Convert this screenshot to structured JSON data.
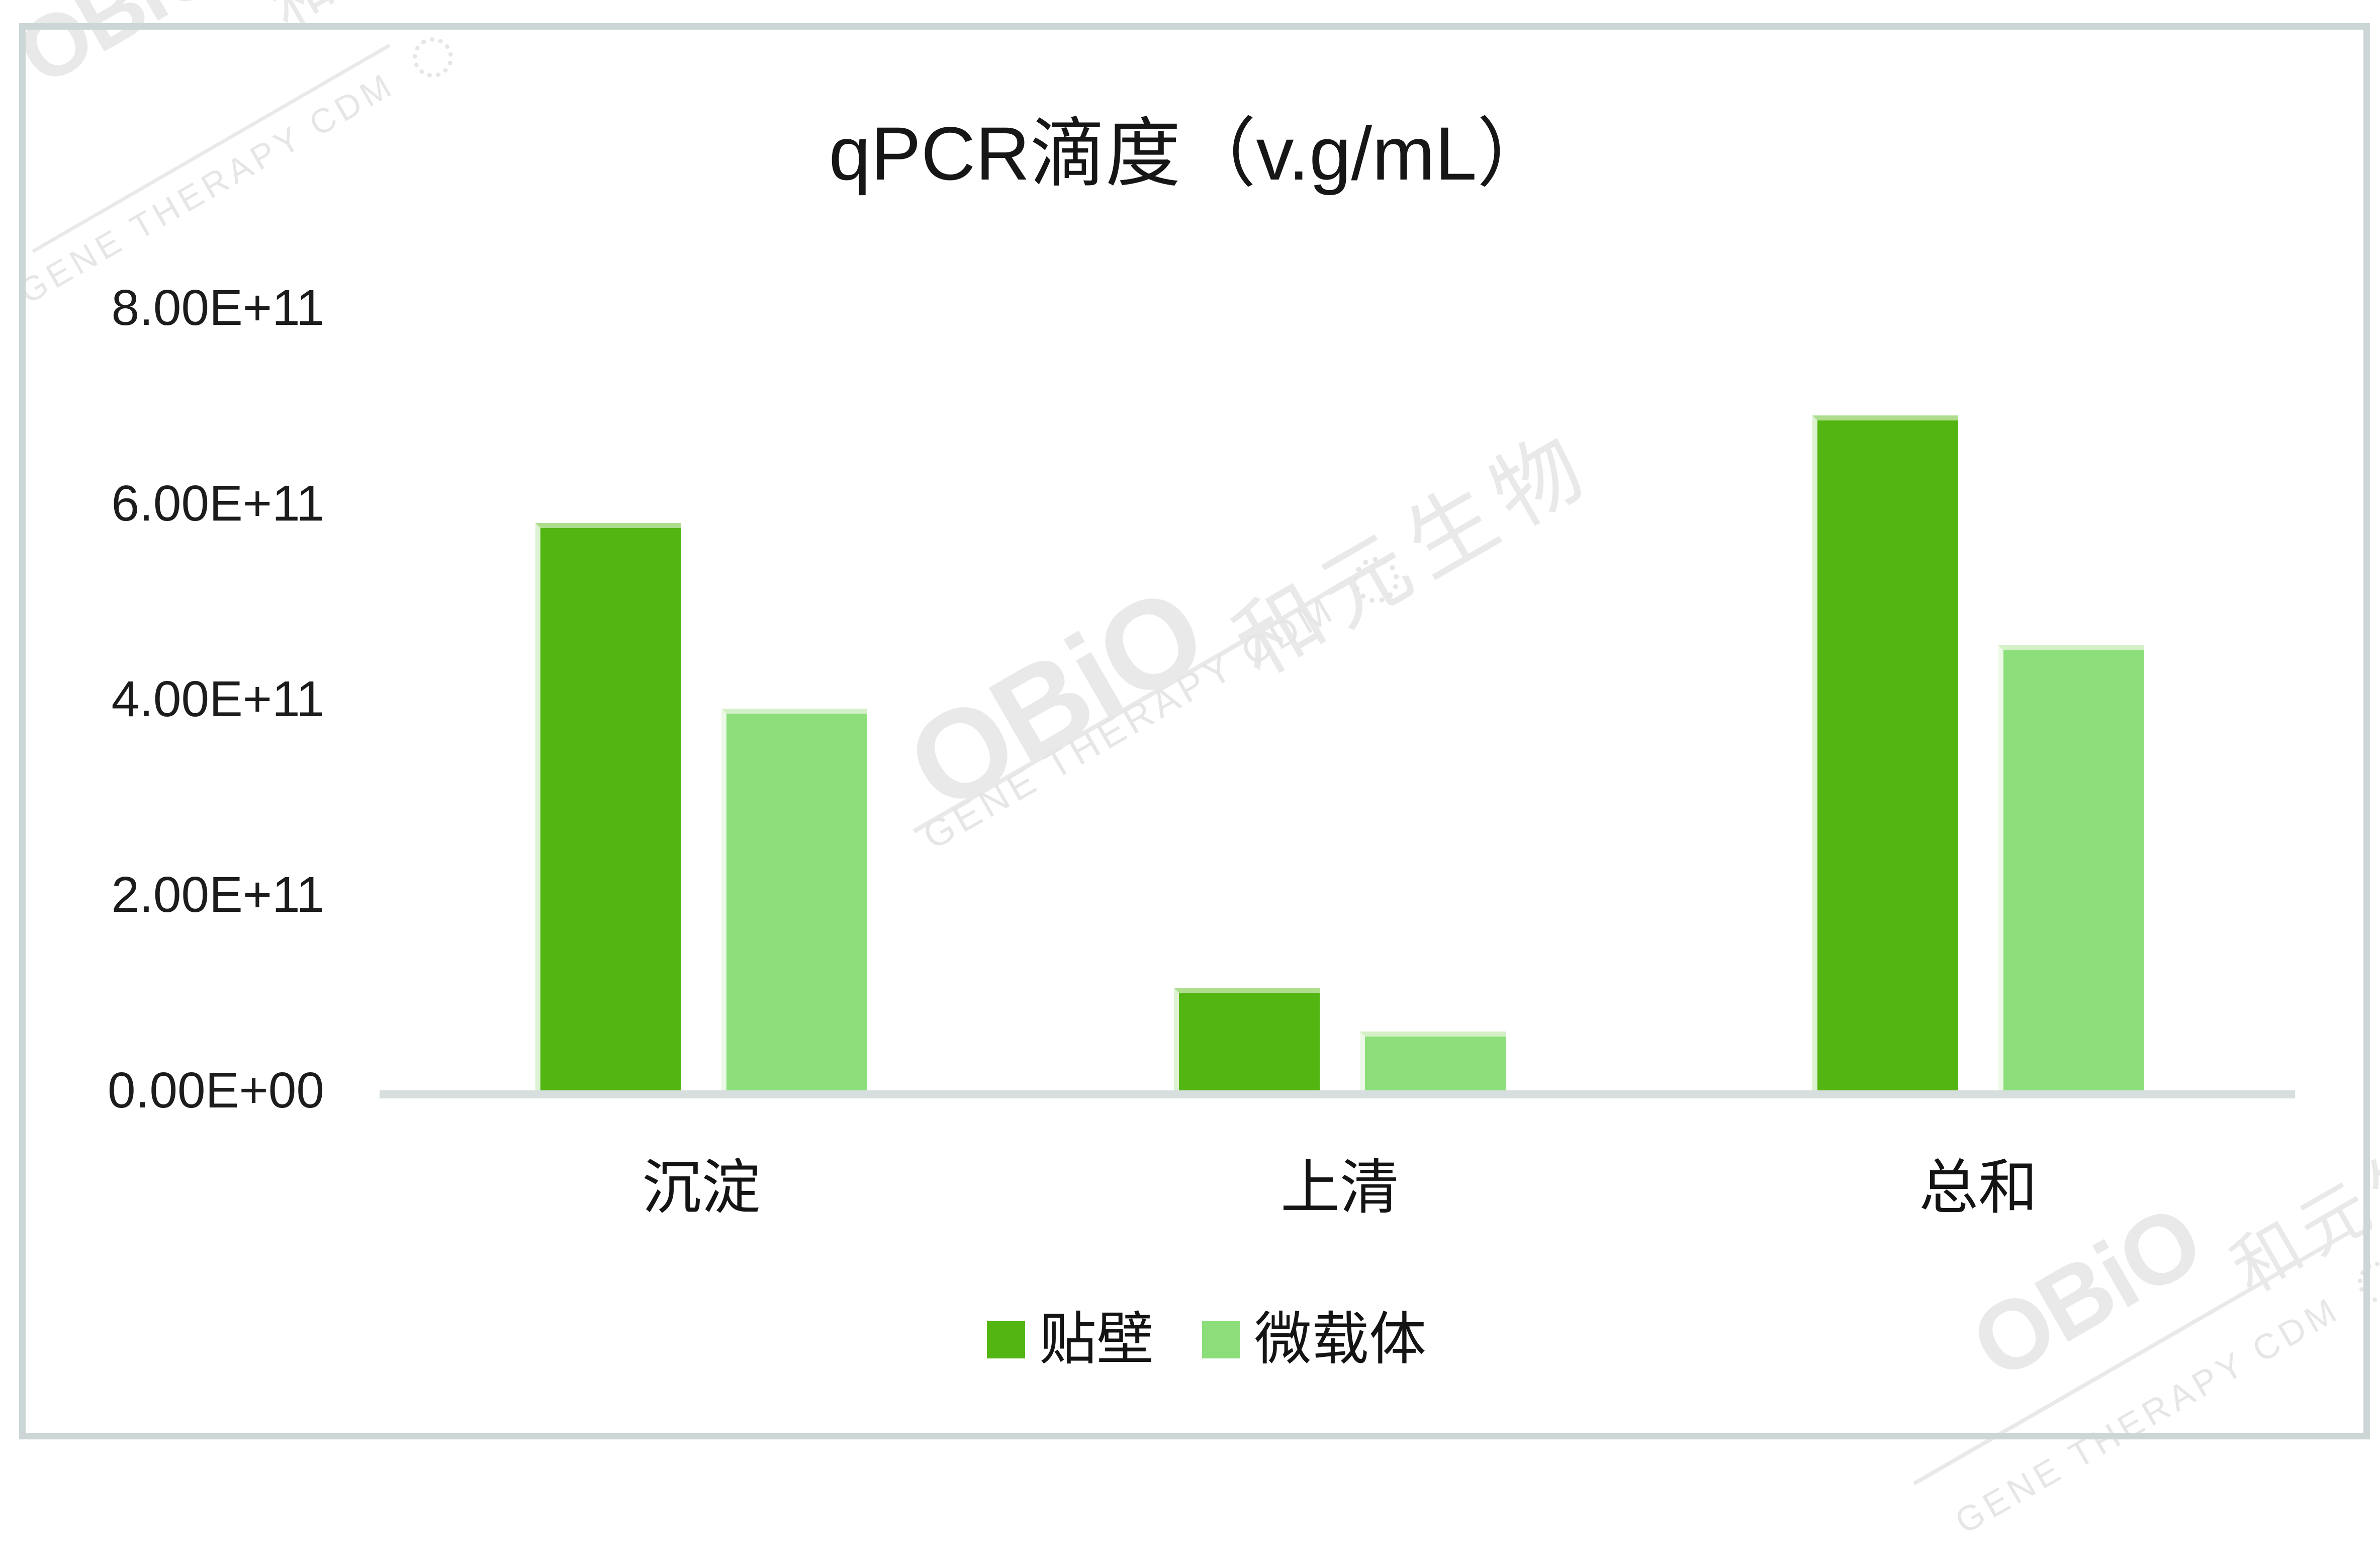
{
  "title": "qPCR滴度（v.g/mL）",
  "chart_data": {
    "type": "bar",
    "categories": [
      "沉淀",
      "上清",
      "总和"
    ],
    "series": [
      {
        "name": "贴壁",
        "color": "#52b512",
        "values": [
          580000000000.0,
          105000000000.0,
          690000000000.0
        ]
      },
      {
        "name": "微载体",
        "color": "#8cde7b",
        "values": [
          390000000000.0,
          60000000000.0,
          455000000000.0
        ]
      }
    ],
    "title": "qPCR滴度（v.g/mL）",
    "xlabel": "",
    "ylabel": "",
    "ylim": [
      0,
      800000000000.0
    ],
    "ytick_step": 200000000000.0,
    "ytick_labels": [
      "0.00E+00",
      "2.00E+11",
      "4.00E+11",
      "6.00E+11",
      "8.00E+11"
    ],
    "grid": false,
    "legend_position": "bottom"
  },
  "watermark": {
    "brand": "OBiO",
    "brand_cn": "和元生物",
    "tagline": "GENE THERAPY CDM",
    "color": "#e9e9e9"
  },
  "colors": {
    "series_dark": "#52b512",
    "series_light": "#8cde7b",
    "axis_line": "#d6dede",
    "frame_border": "#ccd6d6"
  }
}
